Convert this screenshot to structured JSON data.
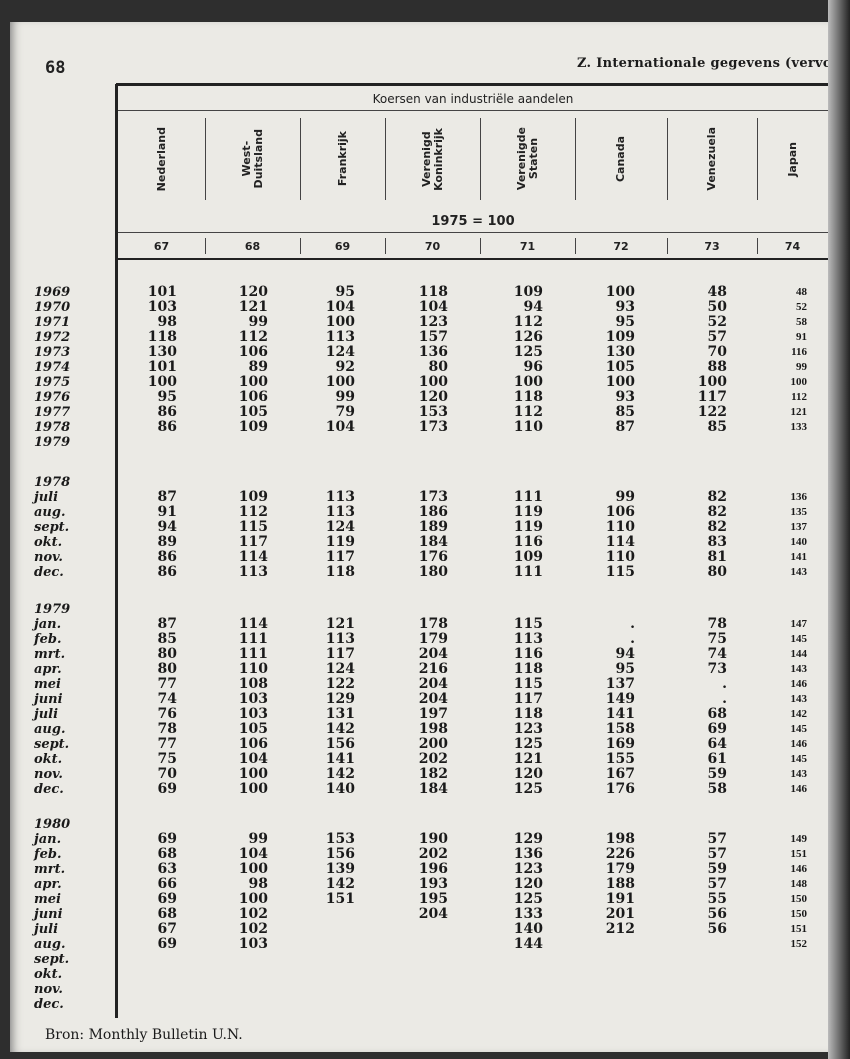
{
  "page_number": "68",
  "section_title": "Z. Internationale gegevens (vervolg)",
  "table": {
    "title": "Koersen van industriële aandelen",
    "base": "1975 = 100",
    "columns": [
      {
        "name": "Nederland",
        "code": "67"
      },
      {
        "name": "West-\nDuitsland",
        "code": "68"
      },
      {
        "name": "Frankrijk",
        "code": "69"
      },
      {
        "name": "Verenigd\nKoninkrijk",
        "code": "70"
      },
      {
        "name": "Verenigde\nStaten",
        "code": "71"
      },
      {
        "name": "Canada",
        "code": "72"
      },
      {
        "name": "Venezuela",
        "code": "73"
      },
      {
        "name": "Japan",
        "code": "74"
      }
    ],
    "annual": [
      {
        "label": "1969",
        "values": [
          101,
          120,
          95,
          118,
          109,
          100,
          48,
          48
        ]
      },
      {
        "label": "1970",
        "values": [
          103,
          121,
          104,
          104,
          94,
          93,
          50,
          52
        ]
      },
      {
        "label": "1971",
        "values": [
          98,
          99,
          100,
          123,
          112,
          95,
          52,
          58
        ]
      },
      {
        "label": "1972",
        "values": [
          118,
          112,
          113,
          157,
          126,
          109,
          57,
          91
        ]
      },
      {
        "label": "1973",
        "values": [
          130,
          106,
          124,
          136,
          125,
          130,
          70,
          116
        ]
      },
      {
        "label": "1974",
        "values": [
          101,
          89,
          92,
          80,
          96,
          105,
          88,
          99
        ]
      },
      {
        "label": "1975",
        "values": [
          100,
          100,
          100,
          100,
          100,
          100,
          100,
          100
        ]
      },
      {
        "label": "1976",
        "values": [
          95,
          106,
          99,
          120,
          118,
          93,
          117,
          112
        ]
      },
      {
        "label": "1977",
        "values": [
          86,
          105,
          79,
          153,
          112,
          85,
          122,
          121
        ]
      },
      {
        "label": "1978",
        "values": [
          86,
          109,
          104,
          173,
          110,
          87,
          85,
          133
        ]
      },
      {
        "label": "1979",
        "values": [
          null,
          null,
          null,
          null,
          null,
          null,
          null,
          null
        ]
      }
    ],
    "monthly": [
      {
        "year": "1978",
        "rows": [
          {
            "label": "juli",
            "values": [
              87,
              109,
              113,
              173,
              111,
              99,
              82,
              136
            ]
          },
          {
            "label": "aug.",
            "values": [
              91,
              112,
              113,
              186,
              119,
              106,
              82,
              135
            ]
          },
          {
            "label": "sept.",
            "values": [
              94,
              115,
              124,
              189,
              119,
              110,
              82,
              137
            ]
          },
          {
            "label": "okt.",
            "values": [
              89,
              117,
              119,
              184,
              116,
              114,
              83,
              140
            ]
          },
          {
            "label": "nov.",
            "values": [
              86,
              114,
              117,
              176,
              109,
              110,
              81,
              141
            ]
          },
          {
            "label": "dec.",
            "values": [
              86,
              113,
              118,
              180,
              111,
              115,
              80,
              143
            ]
          }
        ]
      },
      {
        "year": "1979",
        "rows": [
          {
            "label": "jan.",
            "values": [
              87,
              114,
              121,
              178,
              115,
              ".",
              78,
              147
            ]
          },
          {
            "label": "feb.",
            "values": [
              85,
              111,
              113,
              179,
              113,
              ".",
              75,
              145
            ]
          },
          {
            "label": "mrt.",
            "values": [
              80,
              111,
              117,
              204,
              116,
              94,
              74,
              144
            ]
          },
          {
            "label": "apr.",
            "values": [
              80,
              110,
              124,
              216,
              118,
              95,
              73,
              143
            ]
          },
          {
            "label": "mei",
            "values": [
              77,
              108,
              122,
              204,
              115,
              137,
              ".",
              146
            ]
          },
          {
            "label": "juni",
            "values": [
              74,
              103,
              129,
              204,
              117,
              149,
              ".",
              143
            ]
          },
          {
            "label": "juli",
            "values": [
              76,
              103,
              131,
              197,
              118,
              141,
              68,
              142
            ]
          },
          {
            "label": "aug.",
            "values": [
              78,
              105,
              142,
              198,
              123,
              158,
              69,
              145
            ]
          },
          {
            "label": "sept.",
            "values": [
              77,
              106,
              156,
              200,
              125,
              169,
              64,
              146
            ]
          },
          {
            "label": "okt.",
            "values": [
              75,
              104,
              141,
              202,
              121,
              155,
              61,
              145
            ]
          },
          {
            "label": "nov.",
            "values": [
              70,
              100,
              142,
              182,
              120,
              167,
              59,
              143
            ]
          },
          {
            "label": "dec.",
            "values": [
              69,
              100,
              140,
              184,
              125,
              176,
              58,
              146
            ]
          }
        ]
      },
      {
        "year": "1980",
        "rows": [
          {
            "label": "jan.",
            "values": [
              69,
              99,
              153,
              190,
              129,
              198,
              57,
              149
            ]
          },
          {
            "label": "feb.",
            "values": [
              68,
              104,
              156,
              202,
              136,
              226,
              57,
              151
            ]
          },
          {
            "label": "mrt.",
            "values": [
              63,
              100,
              139,
              196,
              123,
              179,
              59,
              146
            ]
          },
          {
            "label": "apr.",
            "values": [
              66,
              98,
              142,
              193,
              120,
              188,
              57,
              148
            ]
          },
          {
            "label": "mei",
            "values": [
              69,
              100,
              151,
              195,
              125,
              191,
              55,
              150
            ]
          },
          {
            "label": "juni",
            "values": [
              68,
              102,
              null,
              204,
              133,
              201,
              56,
              150
            ]
          },
          {
            "label": "juli",
            "values": [
              67,
              102,
              null,
              null,
              140,
              212,
              56,
              151
            ]
          },
          {
            "label": "aug.",
            "values": [
              69,
              103,
              null,
              null,
              144,
              null,
              null,
              152
            ]
          },
          {
            "label": "sept.",
            "values": [
              null,
              null,
              null,
              null,
              null,
              null,
              null,
              null
            ]
          },
          {
            "label": "okt.",
            "values": [
              null,
              null,
              null,
              null,
              null,
              null,
              null,
              null
            ]
          },
          {
            "label": "nov.",
            "values": [
              null,
              null,
              null,
              null,
              null,
              null,
              null,
              null
            ]
          },
          {
            "label": "dec.",
            "values": [
              null,
              null,
              null,
              null,
              null,
              null,
              null,
              null
            ]
          }
        ]
      }
    ]
  },
  "source": "Bron: Monthly Bulletin U.N."
}
